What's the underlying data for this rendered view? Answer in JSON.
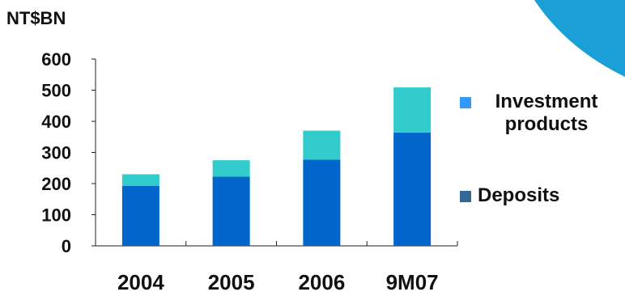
{
  "chart_data": {
    "type": "bar",
    "stacked": true,
    "unit_label": "NT$BN",
    "categories": [
      "2004",
      "2005",
      "2006",
      "9M07"
    ],
    "series": [
      {
        "name": "Deposits",
        "values": [
          193,
          222,
          277,
          364
        ],
        "color": "#0066cc"
      },
      {
        "name": "Investment products",
        "values": [
          37,
          53,
          93,
          145
        ],
        "color": "#33cccc"
      }
    ],
    "yticks": [
      0,
      100,
      200,
      300,
      400,
      500,
      600
    ],
    "ylim": [
      0,
      600
    ],
    "legend": [
      {
        "label": "Investment products",
        "color": "#3399ff"
      },
      {
        "label": "Deposits",
        "color": "#336699"
      }
    ],
    "legend_position": "right",
    "grid": false
  },
  "decor": {
    "corner_shape_color": "#1a9fd6"
  }
}
